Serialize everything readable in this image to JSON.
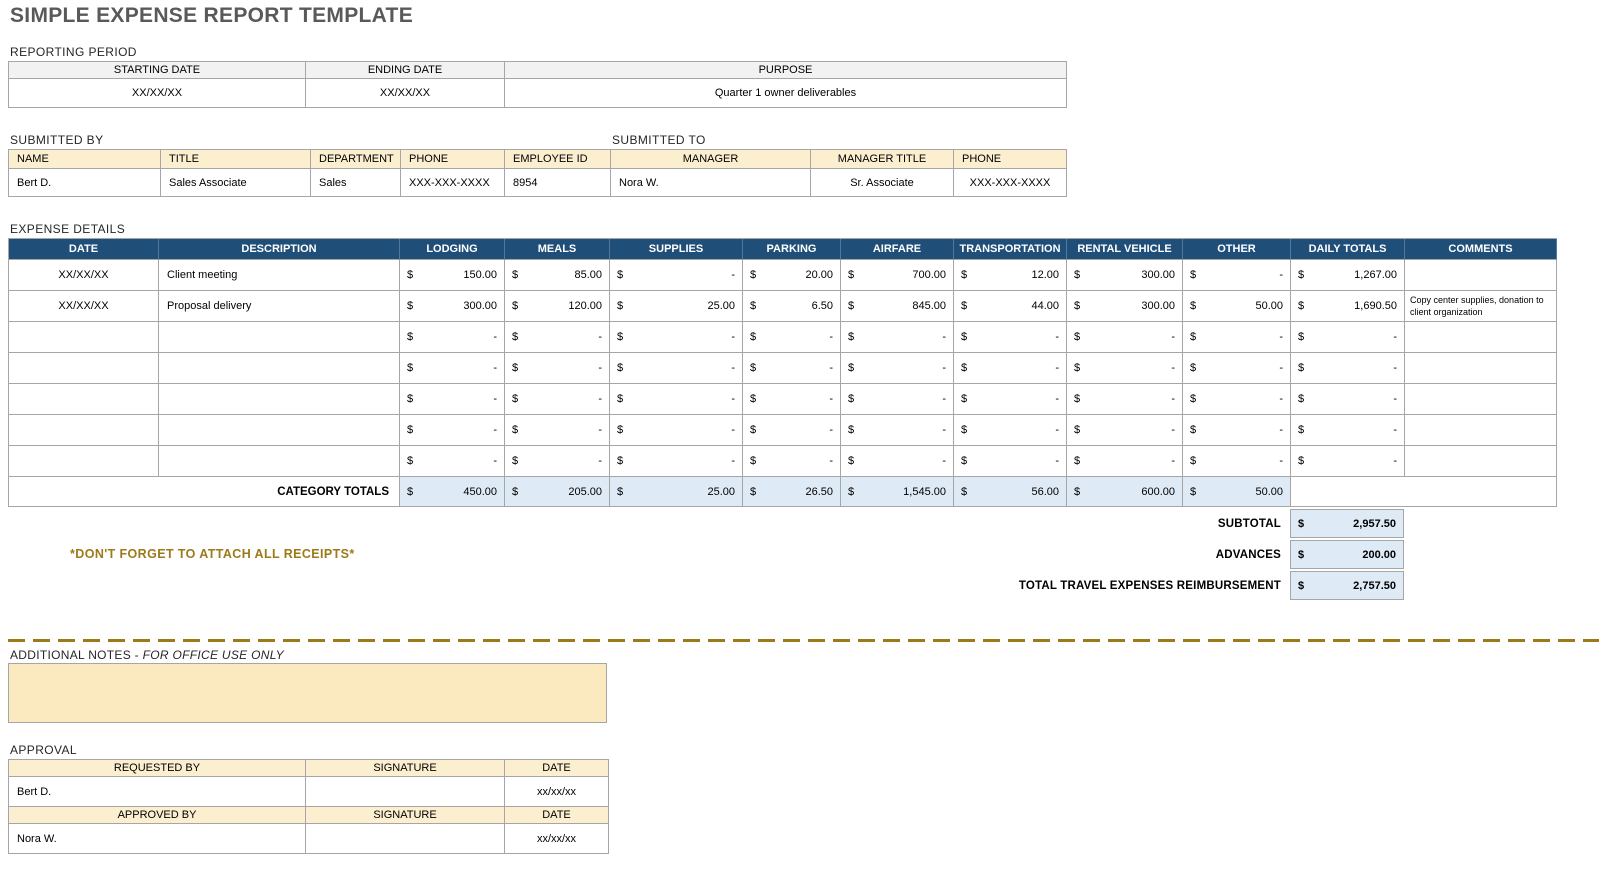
{
  "currency": "$",
  "page": {
    "title": "SIMPLE EXPENSE REPORT TEMPLATE"
  },
  "reporting_period": {
    "label": "REPORTING PERIOD",
    "headers": [
      "STARTING DATE",
      "ENDING DATE",
      "PURPOSE"
    ],
    "values": [
      "XX/XX/XX",
      "XX/XX/XX",
      "Quarter 1 owner deliverables"
    ]
  },
  "submitted": {
    "by_label": "SUBMITTED BY",
    "to_label": "SUBMITTED TO",
    "headers": [
      "NAME",
      "TITLE",
      "DEPARTMENT",
      "PHONE",
      "EMPLOYEE ID",
      "MANAGER",
      "MANAGER TITLE",
      "PHONE"
    ],
    "values": [
      "Bert D.",
      "Sales Associate",
      "Sales",
      "XXX-XXX-XXXX",
      "8954",
      "Nora W.",
      "Sr. Associate",
      "XXX-XXX-XXXX"
    ]
  },
  "expense_details": {
    "label": "EXPENSE DETAILS",
    "headers": [
      "DATE",
      "DESCRIPTION",
      "LODGING",
      "MEALS",
      "SUPPLIES",
      "PARKING",
      "AIRFARE",
      "TRANSPORTATION",
      "RENTAL VEHICLE",
      "OTHER",
      "DAILY TOTALS",
      "COMMENTS"
    ],
    "rows": [
      {
        "date": "XX/XX/XX",
        "description": "Client meeting",
        "amounts": [
          "150.00",
          "85.00",
          "-",
          "20.00",
          "700.00",
          "12.00",
          "300.00",
          "-"
        ],
        "daily_total": "1,267.00",
        "comments": ""
      },
      {
        "date": "XX/XX/XX",
        "description": "Proposal delivery",
        "amounts": [
          "300.00",
          "120.00",
          "25.00",
          "6.50",
          "845.00",
          "44.00",
          "300.00",
          "50.00"
        ],
        "daily_total": "1,690.50",
        "comments": "Copy center supplies, donation to client organization"
      },
      {
        "date": "",
        "description": "",
        "amounts": [
          "-",
          "-",
          "-",
          "-",
          "-",
          "-",
          "-",
          "-"
        ],
        "daily_total": "-",
        "comments": ""
      },
      {
        "date": "",
        "description": "",
        "amounts": [
          "-",
          "-",
          "-",
          "-",
          "-",
          "-",
          "-",
          "-"
        ],
        "daily_total": "-",
        "comments": ""
      },
      {
        "date": "",
        "description": "",
        "amounts": [
          "-",
          "-",
          "-",
          "-",
          "-",
          "-",
          "-",
          "-"
        ],
        "daily_total": "-",
        "comments": ""
      },
      {
        "date": "",
        "description": "",
        "amounts": [
          "-",
          "-",
          "-",
          "-",
          "-",
          "-",
          "-",
          "-"
        ],
        "daily_total": "-",
        "comments": ""
      },
      {
        "date": "",
        "description": "",
        "amounts": [
          "-",
          "-",
          "-",
          "-",
          "-",
          "-",
          "-",
          "-"
        ],
        "daily_total": "-",
        "comments": ""
      }
    ],
    "category_totals": {
      "label": "CATEGORY TOTALS",
      "amounts": [
        "450.00",
        "205.00",
        "25.00",
        "26.50",
        "1,545.00",
        "56.00",
        "600.00",
        "50.00"
      ]
    }
  },
  "summary": {
    "rows": [
      {
        "label": "SUBTOTAL",
        "value": "2,957.50"
      },
      {
        "label": "ADVANCES",
        "value": "200.00"
      },
      {
        "label": "TOTAL TRAVEL EXPENSES REIMBURSEMENT",
        "value": "2,757.50"
      }
    ]
  },
  "receipts_note": "*DON'T FORGET TO ATTACH ALL RECEIPTS*",
  "additional_notes": {
    "label": "ADDITIONAL NOTES - ",
    "label_italic": "FOR OFFICE USE ONLY",
    "content": ""
  },
  "approval": {
    "label": "APPROVAL",
    "sections": [
      {
        "headers": [
          "REQUESTED BY",
          "SIGNATURE",
          "DATE"
        ],
        "name": "Bert D.",
        "signature": "",
        "date": "xx/xx/xx"
      },
      {
        "headers": [
          "APPROVED BY",
          "SIGNATURE",
          "DATE"
        ],
        "name": "Nora W.",
        "signature": "",
        "date": "xx/xx/xx"
      }
    ]
  },
  "colors": {
    "header_blue": "#1F4E79",
    "light_blue": "#DEEAF6",
    "cream_header": "#FCEFD0",
    "notes_bg": "#FBE9C0",
    "accent_gold": "#9C7A18",
    "title_gray": "#595959"
  }
}
